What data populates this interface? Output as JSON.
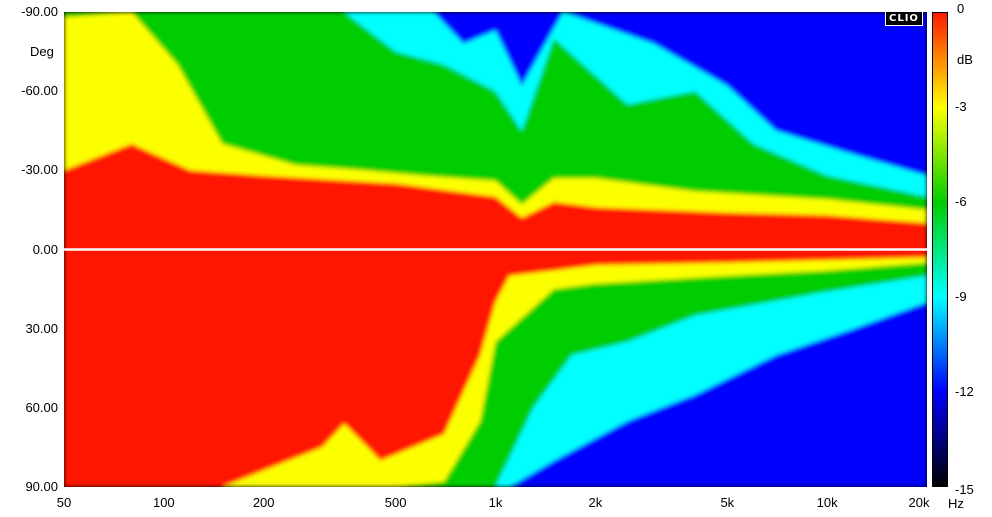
{
  "chart_data": {
    "type": "heatmap",
    "title": "",
    "xlabel": "Hz",
    "ylabel": "Deg",
    "x_scale": "log",
    "xlim": [
      50,
      20000
    ],
    "ylim": [
      -90,
      90
    ],
    "x_ticks": [
      "50",
      "100",
      "200",
      "500",
      "1k",
      "2k",
      "5k",
      "10k",
      "20k"
    ],
    "x_tick_values": [
      50,
      100,
      200,
      500,
      1000,
      2000,
      5000,
      10000,
      20000
    ],
    "y_ticks": [
      "-90.00",
      "-60.00",
      "-30.00",
      "0.00",
      "30.00",
      "60.00",
      "90.00"
    ],
    "y_tick_values": [
      -90,
      -60,
      -30,
      0,
      30,
      60,
      90
    ],
    "colorbar": {
      "label": "dB",
      "range": [
        -15,
        0
      ],
      "ticks": [
        "0",
        "-3",
        "-6",
        "-9",
        "-12",
        "-15"
      ],
      "tick_values": [
        0,
        -3,
        -6,
        -9,
        -12,
        -15
      ]
    },
    "reference_line": {
      "angle": 0,
      "color": "#ffffff"
    },
    "negative_angle_contours": [
      {
        "level": -3,
        "points": [
          [
            50,
            -30
          ],
          [
            80,
            -40
          ],
          [
            120,
            -30
          ],
          [
            200,
            -28
          ],
          [
            500,
            -25
          ],
          [
            1000,
            -20
          ],
          [
            1200,
            -12
          ],
          [
            1500,
            -18
          ],
          [
            2000,
            -16
          ],
          [
            5000,
            -14
          ],
          [
            10000,
            -13
          ],
          [
            20000,
            -10
          ]
        ]
      },
      {
        "level": -6,
        "points": [
          [
            50,
            -88
          ],
          [
            80,
            -90
          ],
          [
            110,
            -70
          ],
          [
            150,
            -40
          ],
          [
            250,
            -32
          ],
          [
            400,
            -30
          ],
          [
            600,
            -28
          ],
          [
            1000,
            -26
          ],
          [
            1200,
            -17
          ],
          [
            1500,
            -27
          ],
          [
            2000,
            -27
          ],
          [
            4000,
            -22
          ],
          [
            10000,
            -19
          ],
          [
            20000,
            -15
          ]
        ]
      },
      {
        "level": -9,
        "points": [
          [
            50,
            -90
          ],
          [
            350,
            -90
          ],
          [
            500,
            -75
          ],
          [
            700,
            -70
          ],
          [
            1000,
            -60
          ],
          [
            1200,
            -45
          ],
          [
            1500,
            -80
          ],
          [
            2500,
            -55
          ],
          [
            4000,
            -60
          ],
          [
            6000,
            -40
          ],
          [
            10000,
            -28
          ],
          [
            20000,
            -20
          ]
        ]
      },
      {
        "level": -12,
        "points": [
          [
            50,
            -90
          ],
          [
            650,
            -90
          ],
          [
            800,
            -78
          ],
          [
            1000,
            -83
          ],
          [
            1200,
            -62
          ],
          [
            1600,
            -90
          ],
          [
            3000,
            -78
          ],
          [
            5000,
            -62
          ],
          [
            7000,
            -45
          ],
          [
            12000,
            -36
          ],
          [
            20000,
            -28
          ]
        ]
      }
    ],
    "positive_angle_contours": [
      {
        "level": -3,
        "points": [
          [
            50,
            90
          ],
          [
            150,
            90
          ],
          [
            300,
            75
          ],
          [
            350,
            66
          ],
          [
            450,
            80
          ],
          [
            700,
            70
          ],
          [
            900,
            40
          ],
          [
            1000,
            20
          ],
          [
            1100,
            10
          ],
          [
            1500,
            8
          ],
          [
            2000,
            6
          ],
          [
            5000,
            5
          ],
          [
            10000,
            4
          ],
          [
            20000,
            3
          ]
        ]
      },
      {
        "level": -6,
        "points": [
          [
            50,
            90
          ],
          [
            500,
            90
          ],
          [
            700,
            88
          ],
          [
            900,
            65
          ],
          [
            1000,
            35
          ],
          [
            1500,
            15
          ],
          [
            2000,
            13
          ],
          [
            5000,
            10
          ],
          [
            10000,
            8
          ],
          [
            20000,
            5
          ]
        ]
      },
      {
        "level": -9,
        "points": [
          [
            50,
            90
          ],
          [
            1000,
            90
          ],
          [
            1300,
            60
          ],
          [
            1700,
            40
          ],
          [
            2500,
            35
          ],
          [
            4000,
            25
          ],
          [
            10000,
            16
          ],
          [
            20000,
            10
          ]
        ]
      },
      {
        "level": -12,
        "points": [
          [
            50,
            90
          ],
          [
            1100,
            90
          ],
          [
            1500,
            80
          ],
          [
            2500,
            65
          ],
          [
            4000,
            55
          ],
          [
            7000,
            40
          ],
          [
            12000,
            30
          ],
          [
            20000,
            20
          ]
        ]
      }
    ]
  },
  "brand": "CLIO"
}
